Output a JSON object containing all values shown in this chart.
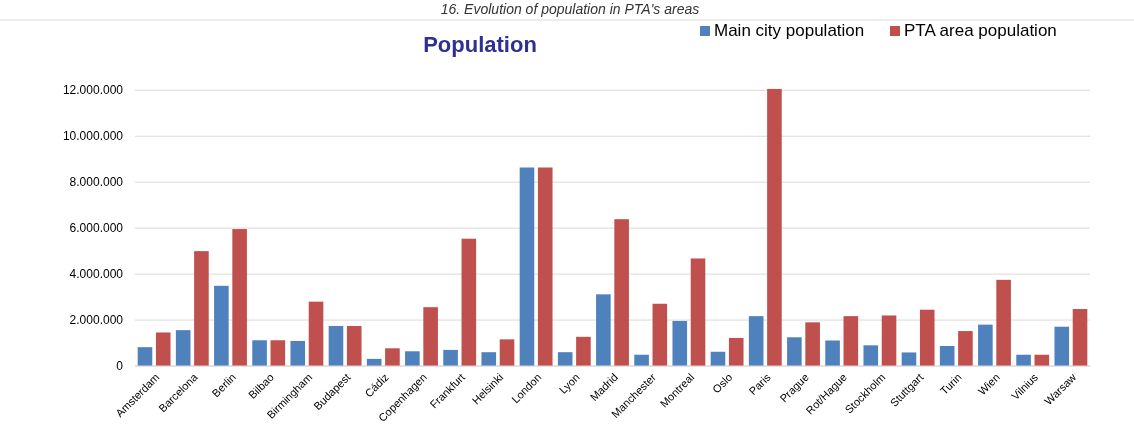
{
  "chart_data": {
    "type": "bar",
    "title": "Population",
    "annotations": [
      "16.  Evolution of population in PTA's areas"
    ],
    "categories": [
      "Amsterdam",
      "Barcelona",
      "Berlin",
      "Bilbao",
      "Birmingham",
      "Budapest",
      "Cádiz",
      "Copenhagen",
      "Frankfurt",
      "Helsinki",
      "London",
      "Lyon",
      "Madrid",
      "Manchester",
      "Montreal",
      "Oslo",
      "Paris",
      "Prague",
      "Rot/Hague",
      "Stockholm",
      "Stuttgart",
      "Turin",
      "Wien",
      "Vilnius",
      "Warsaw"
    ],
    "series": [
      {
        "name": "Main city population",
        "color": "#4f81bd",
        "values": [
          820000,
          1560000,
          3490000,
          1120000,
          1090000,
          1740000,
          310000,
          640000,
          700000,
          600000,
          8640000,
          600000,
          3120000,
          490000,
          1960000,
          620000,
          2170000,
          1250000,
          1110000,
          900000,
          590000,
          870000,
          1800000,
          490000,
          1710000
        ]
      },
      {
        "name": "PTA area population",
        "color": "#c0504d",
        "values": [
          1460000,
          5000000,
          5960000,
          1120000,
          2800000,
          1740000,
          770000,
          2560000,
          5540000,
          1160000,
          8640000,
          1270000,
          6390000,
          2710000,
          4680000,
          1220000,
          12060000,
          1900000,
          2170000,
          2200000,
          2450000,
          1520000,
          3750000,
          490000,
          2480000
        ]
      }
    ],
    "ylim": [
      0,
      12100000
    ],
    "yticks": [
      {
        "value": 0,
        "label": "0"
      },
      {
        "value": 2000000,
        "label": "2.000.000"
      },
      {
        "value": 4000000,
        "label": "4.000.000"
      },
      {
        "value": 6000000,
        "label": "6.000.000"
      },
      {
        "value": 8000000,
        "label": "8.000.000"
      },
      {
        "value": 10000000,
        "label": "10.000.000"
      },
      {
        "value": 12000000,
        "label": "12.000.000"
      }
    ],
    "grid": "y",
    "legend": "top right"
  }
}
